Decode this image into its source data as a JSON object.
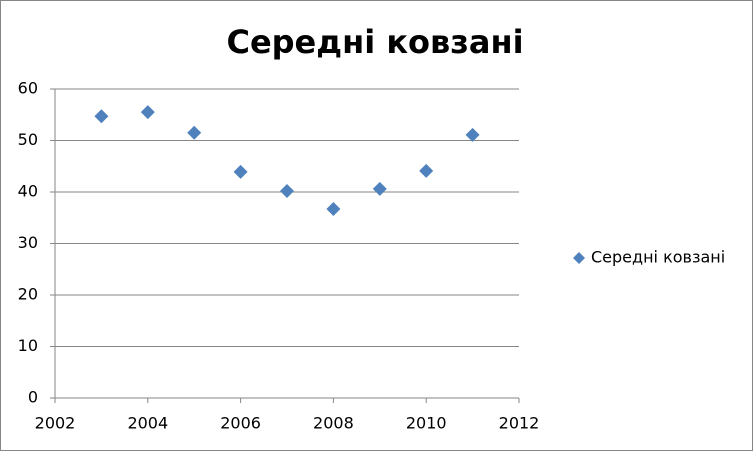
{
  "chart_data": {
    "type": "scatter",
    "title": "Середні ковзані",
    "x": [
      2003,
      2004,
      2005,
      2006,
      2007,
      2008,
      2009,
      2010,
      2011
    ],
    "series": [
      {
        "name": "Середні ковзані",
        "color": "#4f81bd",
        "values": [
          54.7,
          55.5,
          51.5,
          43.9,
          40.2,
          36.7,
          40.6,
          44.1,
          51.1
        ]
      }
    ],
    "xlim": [
      2002,
      2012
    ],
    "xticks": [
      2002,
      2004,
      2006,
      2008,
      2010,
      2012
    ],
    "ylim": [
      0,
      60
    ],
    "yticks": [
      0,
      10,
      20,
      30,
      40,
      50,
      60
    ],
    "grid": true,
    "legend": "right"
  }
}
